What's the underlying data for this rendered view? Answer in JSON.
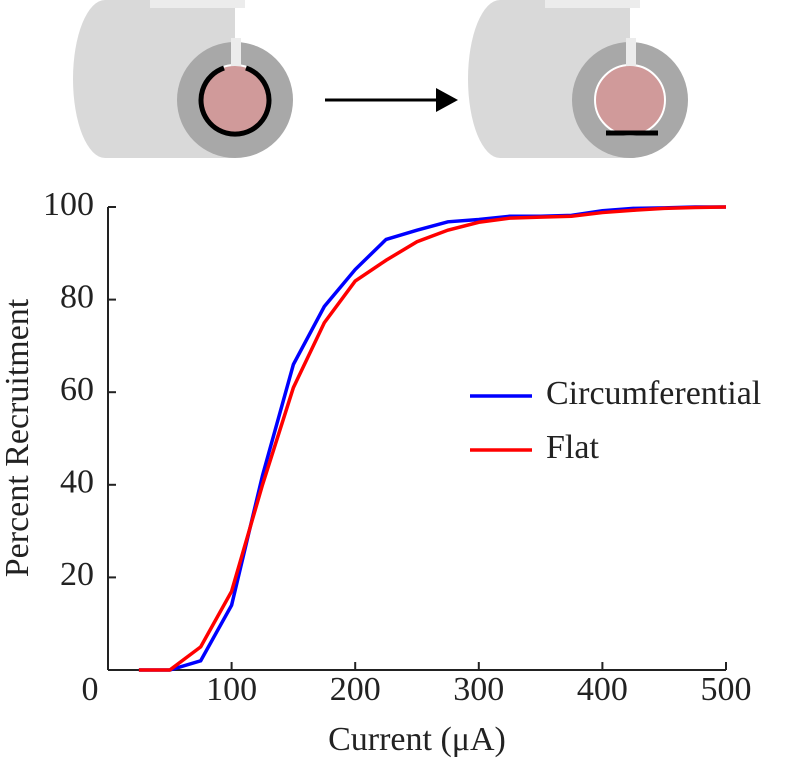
{
  "chart_data": {
    "type": "line",
    "x_label": "Current (μA)",
    "y_label": "Percent Recruitment",
    "x": [
      25,
      50,
      75,
      100,
      125,
      150,
      175,
      200,
      225,
      250,
      275,
      300,
      325,
      350,
      375,
      400,
      425,
      450,
      475,
      500
    ],
    "series": [
      {
        "name": "Circumferential",
        "color": "#0000ff",
        "values": [
          0,
          0,
          2,
          14,
          42,
          66,
          78.5,
          86.5,
          93,
          95,
          96.8,
          97.3,
          98,
          98,
          98.2,
          99.2,
          99.7,
          99.8,
          100,
          100
        ]
      },
      {
        "name": "Flat",
        "color": "#ff0000",
        "values": [
          0,
          0,
          5,
          17,
          40,
          61,
          75,
          84,
          88.5,
          92.5,
          95,
          96.7,
          97.6,
          97.8,
          98,
          98.8,
          99.3,
          99.7,
          99.9,
          100
        ]
      }
    ],
    "xlim": [
      0,
      500
    ],
    "xticks": [
      0,
      100,
      200,
      300,
      400,
      500
    ],
    "ylim": [
      0,
      100
    ],
    "yticks": [
      20,
      40,
      60,
      80,
      100
    ],
    "legend": "right"
  }
}
